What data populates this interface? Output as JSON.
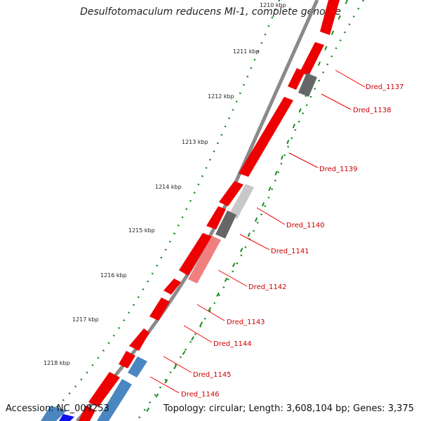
{
  "title": "Desulfotomaculum reducens MI-1, complete genome",
  "accession_label": "Accession: NC_009253",
  "topology_label": "Topology: circular; Length: 3,608,104 bp; Genes: 3,375",
  "colors": {
    "backbone": "#7a7a7a",
    "forward_gene": "#ee0000",
    "reverse_gene_dark": "#666666",
    "reverse_gene_light": "#c8c8c8",
    "reverse_gene_pink": "#f08080",
    "blue_gene": "#4a86c0",
    "tick": "#1b8a1b",
    "label": "#cc0000"
  },
  "kbp_ticks": [
    "1210 kbp",
    "1211 kbp",
    "1212 kbp",
    "1213 kbp",
    "1214 kbp",
    "1215 kbp",
    "1216 kbp",
    "1217 kbp",
    "1218 kbp"
  ],
  "genes": [
    {
      "name": "Dred_1137"
    },
    {
      "name": "Dred_1138"
    },
    {
      "name": "Dred_1139"
    },
    {
      "name": "Dred_1140"
    },
    {
      "name": "Dred_1141"
    },
    {
      "name": "Dred_1142"
    },
    {
      "name": "Dred_1143"
    },
    {
      "name": "Dred_1144"
    },
    {
      "name": "Dred_1145"
    },
    {
      "name": "Dred_1146"
    }
  ]
}
